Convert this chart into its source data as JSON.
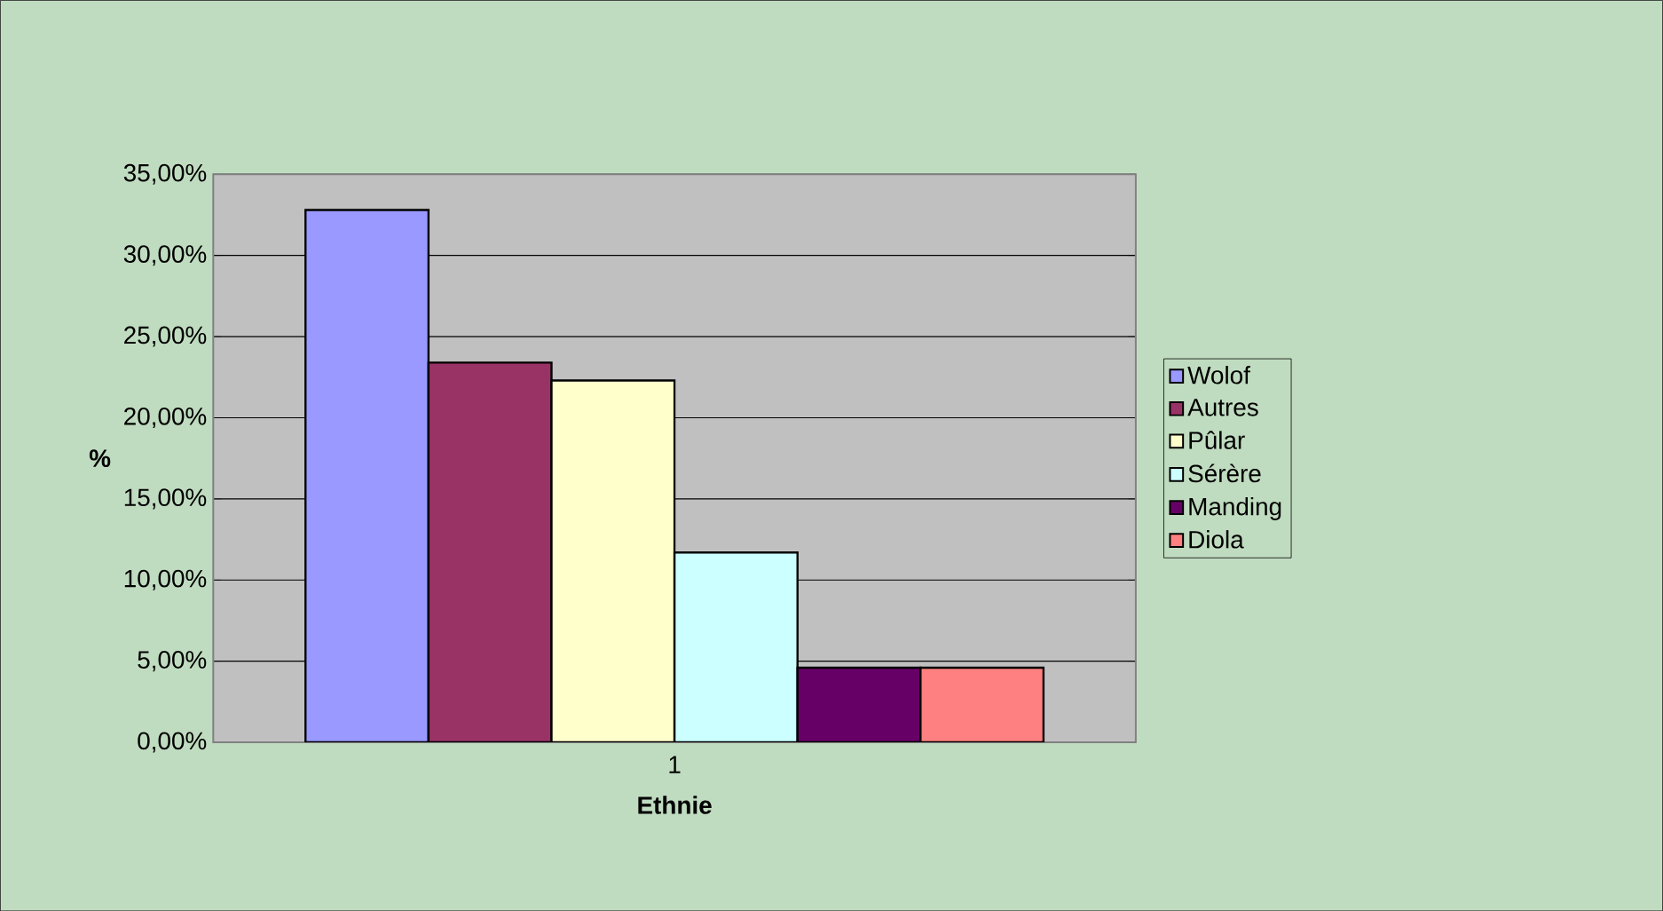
{
  "chart_data": {
    "type": "bar",
    "xlabel": "Ethnie",
    "ylabel": "%",
    "categories": [
      "1"
    ],
    "series": [
      {
        "name": "Wolof",
        "color": "#9999ff",
        "values": [
          32.8
        ]
      },
      {
        "name": "Autres",
        "color": "#993366",
        "values": [
          23.4
        ]
      },
      {
        "name": "Pûlar",
        "color": "#ffffcc",
        "values": [
          22.3
        ]
      },
      {
        "name": "Sérère",
        "color": "#ccffff",
        "values": [
          11.7
        ]
      },
      {
        "name": "Manding",
        "color": "#660066",
        "values": [
          4.6
        ]
      },
      {
        "name": "Diola",
        "color": "#ff8080",
        "values": [
          4.6
        ]
      }
    ],
    "ylim": [
      0,
      35
    ],
    "yticks": [
      {
        "value": 0,
        "label": "0,00%"
      },
      {
        "value": 5,
        "label": "5,00%"
      },
      {
        "value": 10,
        "label": "10,00%"
      },
      {
        "value": 15,
        "label": "15,00%"
      },
      {
        "value": 20,
        "label": "20,00%"
      },
      {
        "value": 25,
        "label": "25,00%"
      },
      {
        "value": 30,
        "label": "30,00%"
      },
      {
        "value": 35,
        "label": "35,00%"
      }
    ],
    "grid": "y",
    "legend": "right"
  }
}
